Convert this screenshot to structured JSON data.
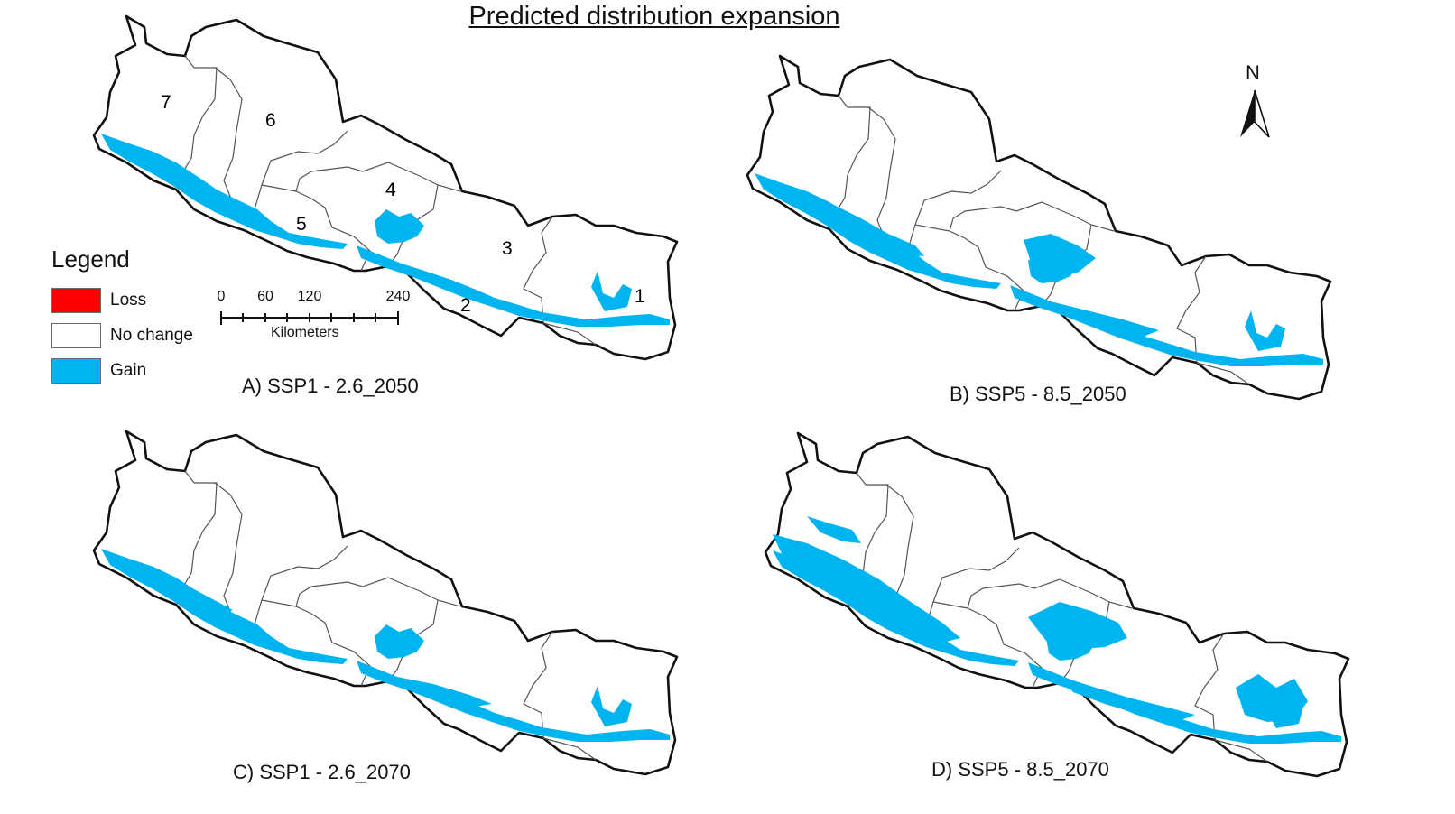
{
  "title": "Predicted distribution expansion",
  "panels": [
    {
      "id": "A",
      "label": "A) SSP1 - 2.6_2050"
    },
    {
      "id": "B",
      "label": "B) SSP5 - 8.5_2050"
    },
    {
      "id": "C",
      "label": "C) SSP1 - 2.6_2070"
    },
    {
      "id": "D",
      "label": "D) SSP5 - 8.5_2070"
    }
  ],
  "legend": {
    "title": "Legend",
    "items": [
      {
        "label": "Loss",
        "color": "#ff0000"
      },
      {
        "label": "No change",
        "color": "#ffffff"
      },
      {
        "label": "Gain",
        "color": "#00b4f0"
      }
    ]
  },
  "scale_bar": {
    "ticks": [
      "0",
      "60",
      "120",
      "240"
    ],
    "unit": "Kilometers"
  },
  "north_arrow": {
    "letter": "N"
  },
  "regions": [
    "1",
    "2",
    "3",
    "4",
    "5",
    "6",
    "7"
  ],
  "colors": {
    "gain": "#00b4f0",
    "boundary": "#111111",
    "province": "#555555"
  }
}
